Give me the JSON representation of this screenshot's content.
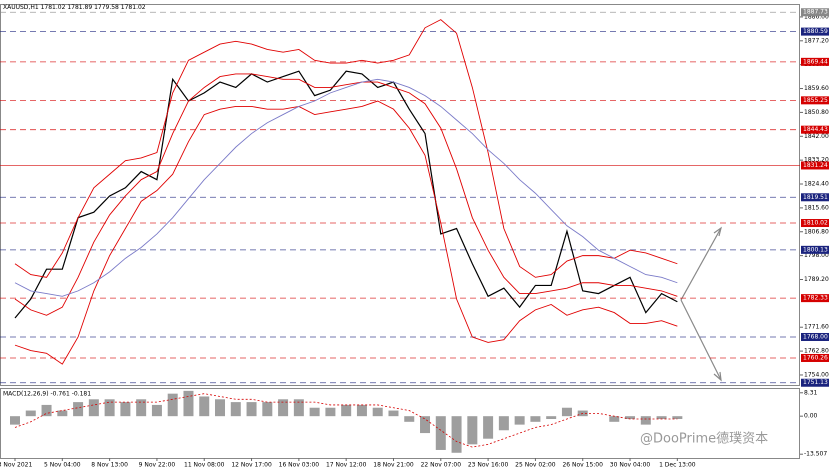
{
  "chart_data": [
    {
      "type": "line",
      "title": "XAUUSD,H1",
      "ohlc": [
        1781.02,
        1781.89,
        1779.58,
        1781.02
      ],
      "watermark": "@DooPrime德璞资本",
      "categories": [
        "3 Nov 2021",
        null,
        null,
        "5 Nov 04:00",
        null,
        null,
        "8 Nov 13:00",
        null,
        null,
        "9 Nov 22:00",
        null,
        null,
        "11 Nov 08:00",
        null,
        null,
        "12 Nov 17:00",
        null,
        null,
        "16 Nov 03:00",
        null,
        null,
        "17 Nov 12:00",
        null,
        null,
        "18 Nov 21:00",
        null,
        null,
        "22 Nov 07:00",
        null,
        null,
        "23 Nov 16:00",
        null,
        null,
        "25 Nov 02:00",
        null,
        null,
        "26 Nov 15:00",
        null,
        null,
        "30 Nov 04:00",
        null,
        null,
        "1 Dec 13:00"
      ],
      "series": [
        {
          "name": "Price",
          "color": "#000000",
          "values": [
            1775,
            1782,
            1793,
            1793,
            1812,
            1814,
            1820,
            1823,
            1829,
            1826,
            1863,
            1855,
            1858,
            1862,
            1860,
            1865,
            1862,
            1864,
            1866,
            1857,
            1859,
            1866,
            1865,
            1860,
            1862,
            1852,
            1843,
            1806,
            1808,
            1795,
            1783,
            1786,
            1779,
            1787,
            1787,
            1807,
            1785,
            1784,
            1787,
            1790,
            1777,
            1784,
            1781
          ]
        },
        {
          "name": "Upper band",
          "color": "#e00000",
          "values": [
            1795,
            1791,
            1790,
            1799,
            1812,
            1823,
            1828,
            1833,
            1834,
            1836,
            1858,
            1870,
            1873,
            1876,
            1877,
            1876,
            1874,
            1873,
            1874,
            1870,
            1869,
            1869,
            1870,
            1869,
            1870,
            1872,
            1882,
            1885,
            1880,
            1860,
            1836,
            1808,
            1794,
            1790,
            1791,
            1796,
            1798,
            1798,
            1797,
            1800,
            1799,
            1797,
            1795
          ]
        },
        {
          "name": "Middle band",
          "color": "#e00000",
          "values": [
            1782,
            1778,
            1776,
            1779,
            1790,
            1803,
            1813,
            1820,
            1826,
            1829,
            1843,
            1855,
            1860,
            1864,
            1865,
            1865,
            1864,
            1863,
            1863,
            1860,
            1860,
            1861,
            1862,
            1862,
            1860,
            1858,
            1854,
            1845,
            1830,
            1812,
            1800,
            1790,
            1784,
            1784,
            1785,
            1786,
            1788,
            1788,
            1787,
            1787,
            1786,
            1785,
            1783
          ]
        },
        {
          "name": "Lower band",
          "color": "#e00000",
          "values": [
            1765,
            1763,
            1762,
            1758,
            1768,
            1785,
            1798,
            1808,
            1818,
            1822,
            1828,
            1840,
            1850,
            1852,
            1853,
            1853,
            1852,
            1852,
            1853,
            1850,
            1851,
            1852,
            1853,
            1855,
            1852,
            1845,
            1835,
            1810,
            1782,
            1768,
            1766,
            1767,
            1774,
            1778,
            1780,
            1776,
            1778,
            1779,
            1777,
            1773,
            1773,
            1774,
            1772
          ]
        },
        {
          "name": "Moving average",
          "color": "#7a7ac8",
          "values": [
            1788,
            1785,
            1784,
            1783,
            1785,
            1788,
            1792,
            1797,
            1801,
            1806,
            1812,
            1819,
            1826,
            1832,
            1838,
            1843,
            1847,
            1850,
            1853,
            1855,
            1858,
            1860,
            1862,
            1863,
            1862,
            1860,
            1857,
            1853,
            1848,
            1843,
            1837,
            1832,
            1826,
            1821,
            1815,
            1809,
            1805,
            1800,
            1797,
            1794,
            1791,
            1790,
            1788
          ]
        }
      ],
      "ylim": [
        1750.3,
        1890.4
      ],
      "yticks": [
        {
          "value": 1886,
          "label": "1886.00"
        },
        {
          "value": 1877.2,
          "label": "1877.20"
        },
        {
          "value": 1868.4,
          "label": "1868.40"
        },
        {
          "value": 1859.6,
          "label": "1859.60"
        },
        {
          "value": 1850.8,
          "label": "1850.80"
        },
        {
          "value": 1842,
          "label": "1842.00"
        },
        {
          "value": 1833.2,
          "label": "1833.20"
        },
        {
          "value": 1824.4,
          "label": "1824.40"
        },
        {
          "value": 1815.6,
          "label": "1815.60"
        },
        {
          "value": 1806.8,
          "label": "1806.80"
        },
        {
          "value": 1798,
          "label": "1798.00"
        },
        {
          "value": 1789.2,
          "label": "1789.20"
        },
        {
          "value": 1771.6,
          "label": "1771.60"
        },
        {
          "value": 1762.8,
          "label": "1762.80"
        },
        {
          "value": 1754,
          "label": "1754.00"
        }
      ],
      "levels": [
        {
          "value": 1887.73,
          "color": "#888888"
        },
        {
          "value": 1880.59,
          "color": "#1a237e"
        },
        {
          "value": 1869.44,
          "color": "#d50000"
        },
        {
          "value": 1855.25,
          "color": "#d50000"
        },
        {
          "value": 1844.43,
          "color": "#d50000"
        },
        {
          "value": 1831.24,
          "color": "#d50000"
        },
        {
          "value": 1819.51,
          "color": "#1a237e"
        },
        {
          "value": 1810.02,
          "color": "#d50000"
        },
        {
          "value": 1800.13,
          "color": "#1a237e"
        },
        {
          "value": 1782.33,
          "color": "#d50000"
        },
        {
          "value": {
            "value": 1768,
            "label": "1768.00"
          },
          "color": "#1a237e"
        },
        {
          "value": 1760.26,
          "color": "#d50000"
        },
        {
          "value": 1751.13,
          "color": "#1a237e"
        }
      ]
    },
    {
      "type": "bar",
      "title": "MACD(12,26,9) -0.761 -0.181",
      "series": [
        {
          "name": "MACD",
          "color": "#9e9e9e",
          "values": [
            -3,
            2,
            4,
            2,
            5,
            6,
            6,
            5,
            6,
            4,
            8,
            9,
            7,
            6,
            5,
            5,
            5,
            6,
            6,
            3,
            3,
            4,
            4,
            3,
            2,
            -2,
            -6,
            -12,
            -13,
            -10,
            -8,
            -5,
            -3,
            -2,
            -1,
            3,
            2,
            0,
            -2,
            -1,
            -3,
            -1,
            -1
          ]
        },
        {
          "name": "Signal",
          "color": "#d50000",
          "values": [
            -4,
            -2,
            1,
            2,
            3,
            4,
            5,
            5,
            5,
            5,
            6,
            7,
            8,
            7,
            6,
            6,
            5,
            5,
            5,
            5,
            4,
            4,
            4,
            4,
            3,
            2,
            -1,
            -5,
            -9,
            -11,
            -10,
            -8,
            -6,
            -4,
            -3,
            -1,
            1,
            1,
            0,
            -1,
            -1,
            -1,
            -1
          ]
        }
      ],
      "ylim": [
        -14.5,
        9.3
      ],
      "yticks": [
        8.31,
        {
          "value": 0,
          "label": "0.00"
        },
        -13.507
      ]
    }
  ]
}
